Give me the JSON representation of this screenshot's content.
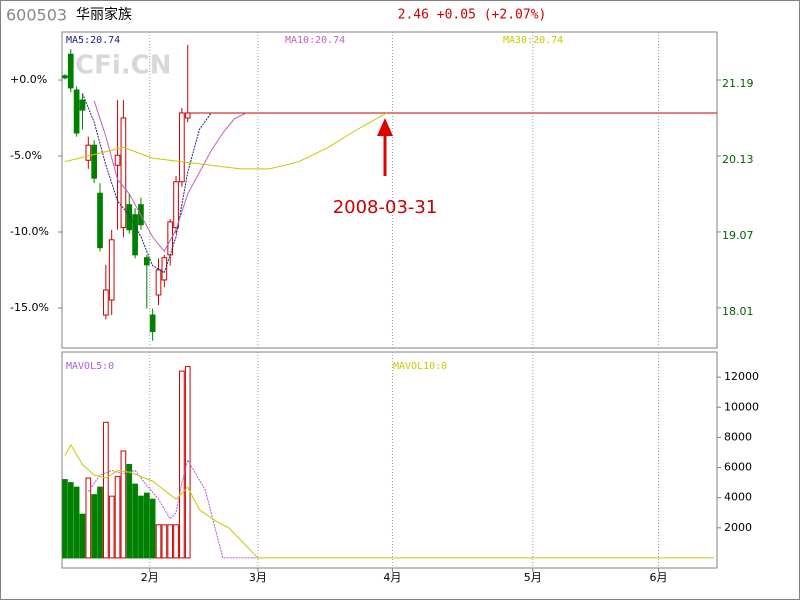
{
  "chart_data": [
    {
      "type": "candlestick",
      "title": "600503",
      "subtitle": "华丽家族",
      "quote": "2.46 +0.05 (+2.07%)",
      "watermark": "CFi.CN",
      "annotation": "2008-03-31",
      "up_color": "#cc0000",
      "down_color": "#008000",
      "x": [
        0,
        1,
        2,
        3,
        4,
        5,
        6,
        7,
        8,
        9,
        10,
        11,
        12,
        13,
        14,
        15,
        16,
        17,
        18,
        19,
        20,
        21
      ],
      "open": [
        21.25,
        21.55,
        21.05,
        20.91,
        20.07,
        20.28,
        19.61,
        17.91,
        18.12,
        20.0,
        19.13,
        19.45,
        19.31,
        19.45,
        18.71,
        17.91,
        18.19,
        18.4,
        18.75,
        19.13,
        19.77,
        20.66
      ],
      "high": [
        21.27,
        21.62,
        21.1,
        21.0,
        20.4,
        20.35,
        19.75,
        18.61,
        19.1,
        20.91,
        20.91,
        19.6,
        19.4,
        19.55,
        18.75,
        18.0,
        18.7,
        18.75,
        19.25,
        19.85,
        20.8,
        21.68
      ],
      "low": [
        21.2,
        21.02,
        20.4,
        20.5,
        19.95,
        19.75,
        18.8,
        17.85,
        17.91,
        19.1,
        19.0,
        19.05,
        18.7,
        19.1,
        18.0,
        17.55,
        18.05,
        18.3,
        18.6,
        19.05,
        19.7,
        20.6
      ],
      "close": [
        21.22,
        21.08,
        20.45,
        20.77,
        20.28,
        19.82,
        18.85,
        18.26,
        18.96,
        20.14,
        20.66,
        19.1,
        18.75,
        19.17,
        18.61,
        17.68,
        18.54,
        18.71,
        19.21,
        19.77,
        20.73,
        20.73
      ],
      "series": [
        {
          "name": "MA5:20.74",
          "color": "#1a237e",
          "x": [
            3,
            5,
            7,
            9,
            11,
            13,
            15,
            17,
            19,
            21,
            23,
            25
          ],
          "values": [
            21.0,
            20.6,
            20.0,
            19.5,
            19.3,
            19.0,
            18.6,
            18.5,
            19.0,
            19.9,
            20.5,
            20.73
          ]
        },
        {
          "name": "MA10:20.74",
          "color": "#c060c0",
          "x": [
            5,
            7,
            9,
            11,
            13,
            15,
            17,
            19,
            21,
            23,
            25,
            27,
            29,
            31
          ],
          "values": [
            20.9,
            20.4,
            19.8,
            19.6,
            19.3,
            19.0,
            18.8,
            19.1,
            19.6,
            19.9,
            20.2,
            20.45,
            20.65,
            20.73
          ]
        },
        {
          "name": "MA30:20.74",
          "color": "#c8c800",
          "x": [
            0,
            5,
            10,
            15,
            20,
            25,
            30,
            35,
            40,
            45,
            50,
            55
          ],
          "values": [
            20.05,
            20.15,
            20.25,
            20.1,
            20.05,
            20.0,
            19.95,
            19.95,
            20.05,
            20.25,
            20.5,
            20.73
          ]
        }
      ],
      "xlim": [
        -0.5,
        111.5
      ],
      "ylim": [
        17.45,
        21.86
      ],
      "yticks": [
        18.01,
        19.07,
        20.13,
        21.19
      ],
      "y2lim": [
        -17.63,
        3.16
      ],
      "y2ticks": [
        {
          "value": 0,
          "label": "+0.0%"
        },
        {
          "value": -5,
          "label": "-5.0%"
        },
        {
          "value": -10,
          "label": "-10.0%"
        },
        {
          "value": -15,
          "label": "-15.0%"
        }
      ]
    },
    {
      "type": "bar",
      "x": [
        0,
        1,
        2,
        3,
        4,
        5,
        6,
        7,
        8,
        9,
        10,
        11,
        12,
        13,
        14,
        15,
        16,
        17,
        18,
        19,
        20,
        21
      ],
      "values": [
        5200,
        5000,
        4700,
        2900,
        5300,
        4200,
        4700,
        9000,
        4100,
        5400,
        7100,
        6200,
        4900,
        4100,
        4300,
        3900,
        2200,
        2200,
        2200,
        2200,
        12400,
        12700
      ],
      "series": [
        {
          "name": "MAVOL5:0",
          "color": "#b05cd0",
          "x": [
            4,
            6,
            8,
            10,
            12,
            14,
            16,
            18,
            19,
            20,
            21,
            24,
            27,
            33
          ],
          "values": [
            4400,
            5500,
            5800,
            5600,
            5800,
            4800,
            3900,
            2600,
            3000,
            5000,
            6500,
            4500,
            0,
            0
          ]
        },
        {
          "name": "MAVOL10:0",
          "color": "#c8c800",
          "x": [
            0,
            1,
            3,
            5,
            7,
            9,
            11,
            13,
            15,
            17,
            19,
            21,
            23,
            26,
            28,
            33,
            111
          ],
          "values": [
            6800,
            7500,
            6200,
            5500,
            5300,
            5800,
            5700,
            5400,
            5100,
            4500,
            3900,
            4700,
            3200,
            2400,
            2000,
            0,
            0
          ]
        }
      ],
      "xlim": [
        -0.5,
        111.5
      ],
      "ylim": [
        -667,
        13667
      ],
      "yticks": [
        2000,
        4000,
        6000,
        8000,
        10000,
        12000
      ],
      "xticks": [
        {
          "value": 14.5,
          "label": "2月"
        },
        {
          "value": 33,
          "label": "3月"
        },
        {
          "value": 56,
          "label": "4月"
        },
        {
          "value": 80,
          "label": "5月"
        },
        {
          "value": 101.5,
          "label": "6月"
        }
      ]
    }
  ]
}
